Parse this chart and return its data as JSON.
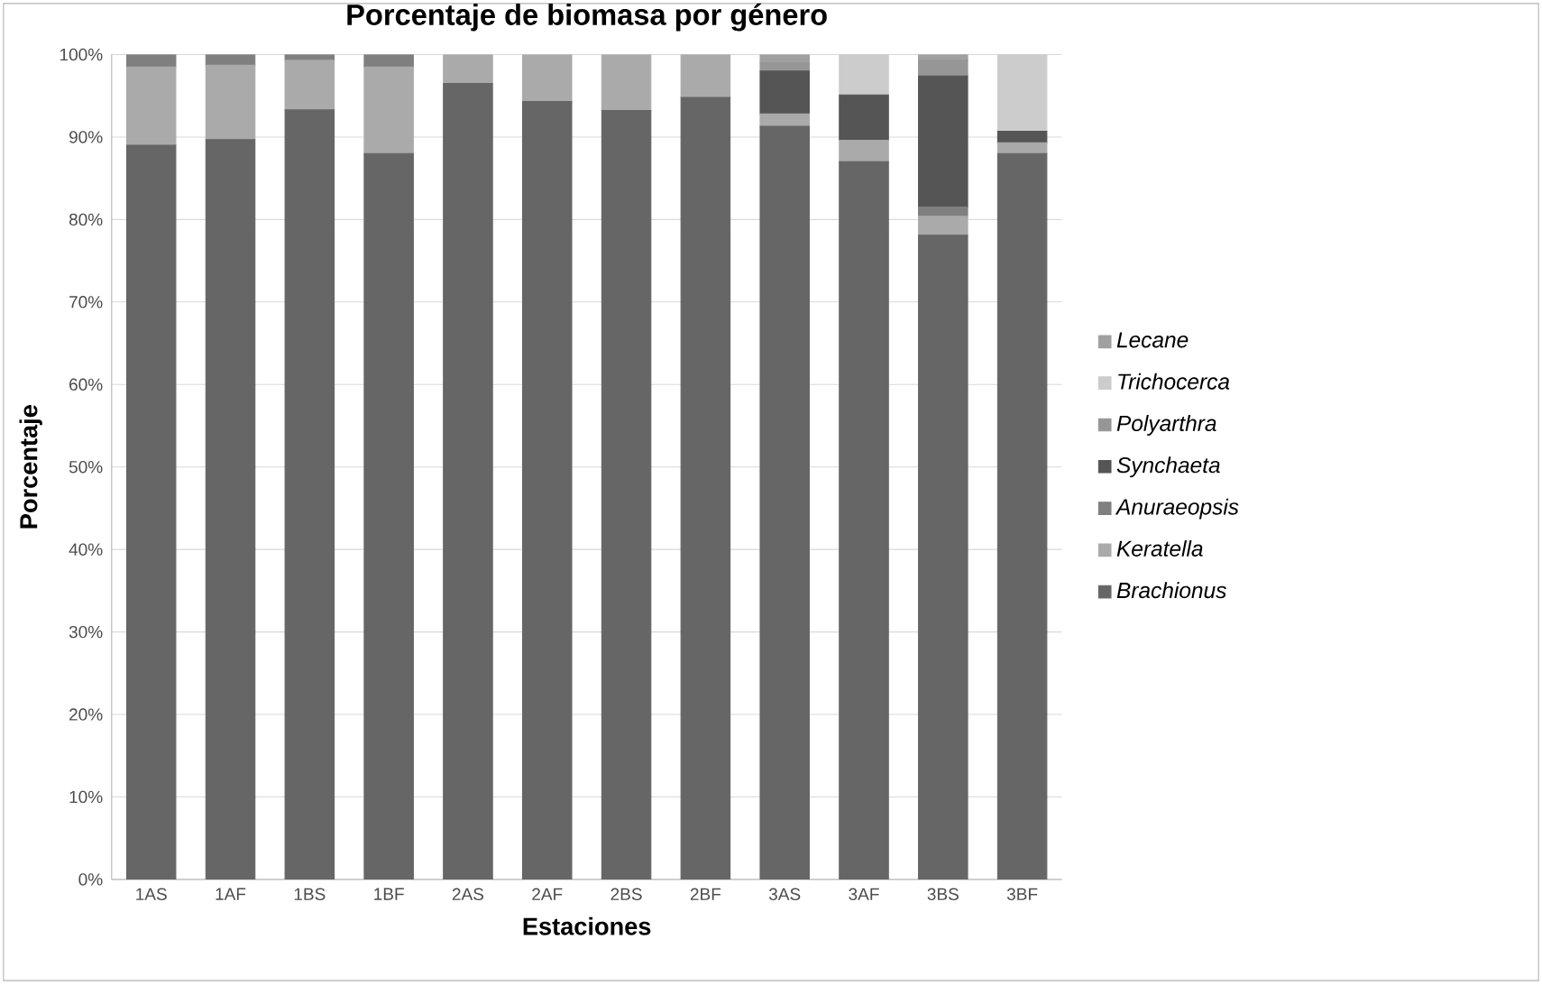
{
  "chart_data": {
    "type": "bar",
    "stacked": true,
    "title": "Porcentaje de biomasa por género",
    "xlabel": "Estaciones",
    "ylabel": "Porcentaje",
    "categories": [
      "1AS",
      "1AF",
      "1BS",
      "1BF",
      "2AS",
      "2AF",
      "2BS",
      "2BF",
      "3AS",
      "3AF",
      "3BS",
      "3BF"
    ],
    "series": [
      {
        "name": "*Brachionus*",
        "color": "#666666",
        "values": [
          89,
          89.7,
          93.3,
          88,
          96.5,
          94.3,
          93.2,
          94.8,
          91.3,
          87,
          78.1,
          88
        ]
      },
      {
        "name": "*Keratella*",
        "color": "#aaaaaa",
        "values": [
          9.5,
          9,
          6,
          10.5,
          3.5,
          5.7,
          6.8,
          5.2,
          1.5,
          2.6,
          2.3,
          1.3
        ]
      },
      {
        "name": "*Anuraeopsis*",
        "color": "#7f7f7f",
        "values": [
          1.5,
          1.3,
          0.7,
          1.5,
          0,
          0,
          0,
          0,
          0,
          0,
          1.1,
          0
        ]
      },
      {
        "name": "*Synchaeta*",
        "color": "#555555",
        "values": [
          0,
          0,
          0,
          0,
          0,
          0,
          0,
          0,
          5.2,
          5.5,
          15.9,
          1.4
        ]
      },
      {
        "name": "*Polyarthra*",
        "color": "#969696",
        "values": [
          0,
          0,
          0,
          0,
          0,
          0,
          0,
          0,
          1,
          0,
          1.9,
          0
        ]
      },
      {
        "name": "*Trichocerca*",
        "color": "#cccccc",
        "values": [
          0,
          0,
          0,
          0,
          0,
          0,
          0,
          0,
          0,
          4.9,
          0,
          9.3
        ]
      },
      {
        "name": "*Lecane*",
        "color": "#a0a0a0",
        "values": [
          0,
          0,
          0,
          0,
          0,
          0,
          0,
          0,
          1,
          0,
          0.7,
          0
        ]
      }
    ],
    "ylim": [
      0,
      100
    ],
    "yticks": [
      {
        "value": 0,
        "label": "0%"
      },
      {
        "value": 10,
        "label": "10%"
      },
      {
        "value": 20,
        "label": "20%"
      },
      {
        "value": 30,
        "label": "30%"
      },
      {
        "value": 40,
        "label": "40%"
      },
      {
        "value": 50,
        "label": "50%"
      },
      {
        "value": 60,
        "label": "60%"
      },
      {
        "value": 70,
        "label": "70%"
      },
      {
        "value": 80,
        "label": "80%"
      },
      {
        "value": 90,
        "label": "90%"
      },
      {
        "value": 100,
        "label": "100%"
      }
    ],
    "grid": "y",
    "legend": "right"
  }
}
